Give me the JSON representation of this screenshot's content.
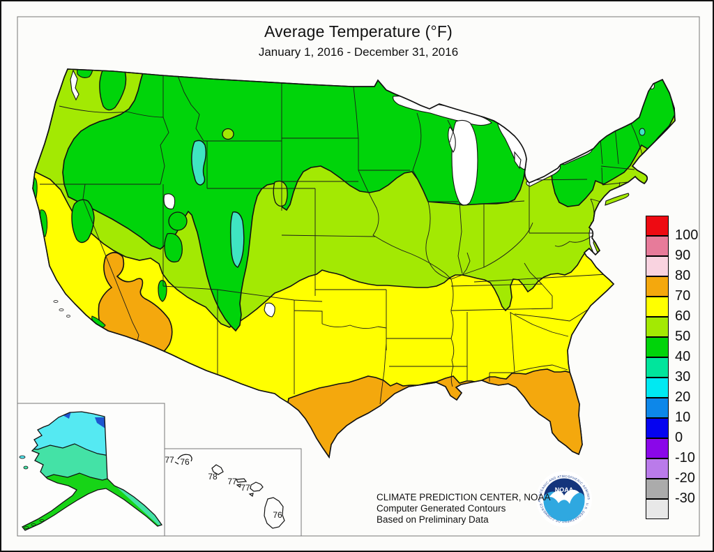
{
  "title": "Average Temperature (°F)",
  "subtitle": "January 1, 2016 - December 31, 2016",
  "credits": {
    "line1": "CLIMATE PREDICTION CENTER, NOAA",
    "line2": "Computer Generated Contours",
    "line3": "Based on Preliminary Data"
  },
  "logo": {
    "name": "NOAA",
    "ring_top": "NATIONAL OCEANIC AND ATMOSPHERIC ADMINISTRATION",
    "ring_bottom": "U.S. DEPARTMENT OF COMMERCE"
  },
  "legend": {
    "title": "",
    "items": [
      {
        "label": "100",
        "color": "#EE0A12"
      },
      {
        "label": "90",
        "color": "#E77B9A"
      },
      {
        "label": "80",
        "color": "#F9D3E0"
      },
      {
        "label": "70",
        "color": "#F4A80D"
      },
      {
        "label": "60",
        "color": "#FFFF00"
      },
      {
        "label": "50",
        "color": "#A3E903"
      },
      {
        "label": "40",
        "color": "#00D40A"
      },
      {
        "label": "30",
        "color": "#00E59C"
      },
      {
        "label": "20",
        "color": "#00E9F2"
      },
      {
        "label": "10",
        "color": "#0D87E9"
      },
      {
        "label": "0",
        "color": "#0503F0"
      },
      {
        "label": "-10",
        "color": "#8A07E9"
      },
      {
        "label": "-20",
        "color": "#BA7BEA"
      },
      {
        "label": "-30",
        "color": "#ABABAB"
      },
      {
        "label": "",
        "color": "#E8E8E8"
      }
    ]
  },
  "hawaii": {
    "labels": [
      "77",
      "76",
      "78",
      "77",
      "77",
      "76"
    ]
  },
  "colors": {
    "yellow_green": "#A3E903",
    "green": "#00D40A",
    "yellow": "#FFFF00",
    "orange": "#F4A80D",
    "teal": "#3FE5C2",
    "spring_green": "#00E59C",
    "cyan": "#00E9F2",
    "water": "#FFFFFF",
    "ak_cyan": "#55E9F2",
    "ak_teal": "#44E2A6",
    "ak_green": "#17D417",
    "ak_blue": "#1E56D0",
    "logo_dark": "#14357C",
    "logo_light": "#2FA8E0",
    "logo_text": "#1B3F8F"
  },
  "chart_data": {
    "type": "heatmap",
    "title": "Average Temperature (°F)",
    "subtitle": "January 1, 2016 - December 31, 2016",
    "legend_values_f": [
      100,
      90,
      80,
      70,
      60,
      50,
      40,
      30,
      20,
      10,
      0,
      -10,
      -20,
      -30
    ],
    "legend_position": "right",
    "hawaii_station_values_f": [
      77,
      76,
      78,
      77,
      77,
      76
    ],
    "bands_shown_conus_f": [
      "30-40",
      "40-50",
      "50-60",
      "60-70",
      "70-80"
    ],
    "bands_shown_alaska_f": [
      "10-20",
      "20-30",
      "30-40",
      "40-50"
    ]
  }
}
